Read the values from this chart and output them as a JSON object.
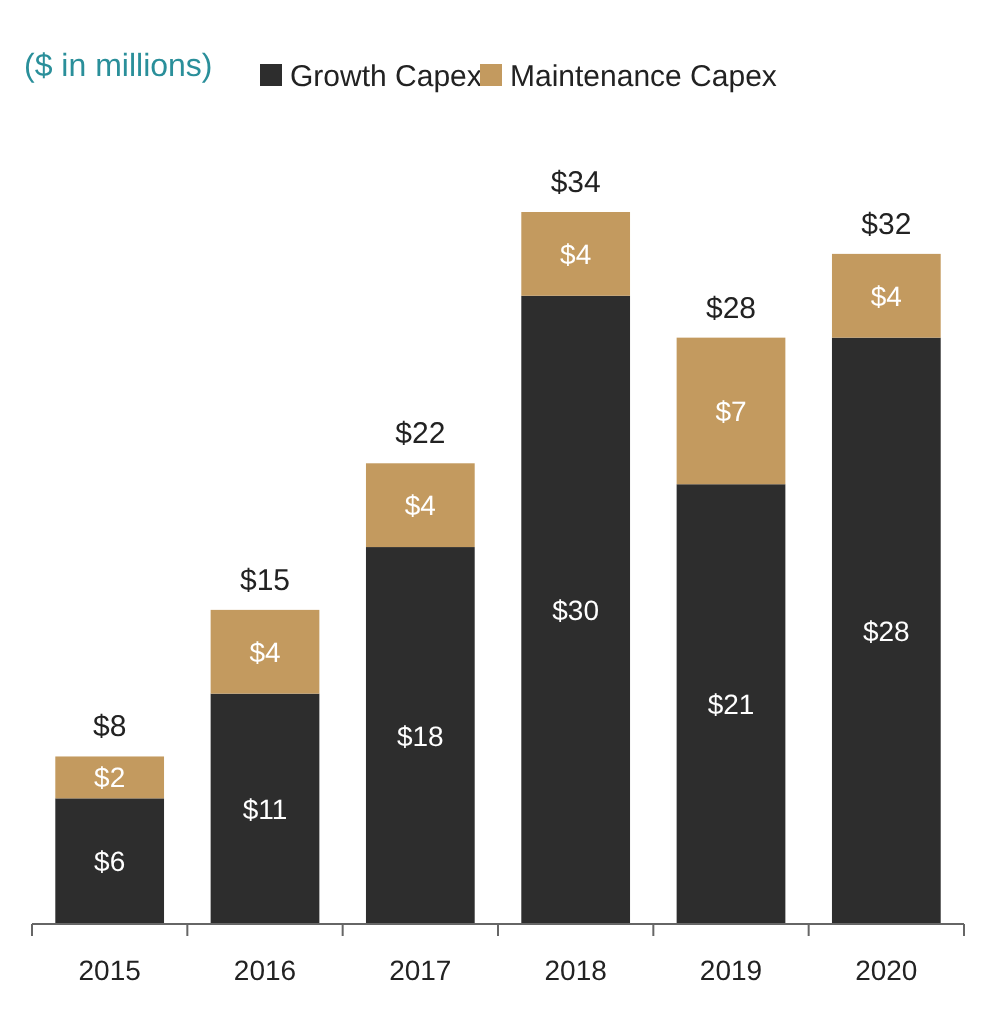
{
  "chart_data": {
    "type": "bar",
    "subtitle": "($ in millions)",
    "stacked": true,
    "legend": "top",
    "categories": [
      "2015",
      "2016",
      "2017",
      "2018",
      "2019",
      "2020"
    ],
    "series": [
      {
        "name": "Growth Capex",
        "color": "#2d2d2d",
        "values": [
          6,
          11,
          18,
          30,
          21,
          28
        ],
        "value_labels": [
          "$6",
          "$11",
          "$18",
          "$30",
          "$21",
          "$28"
        ]
      },
      {
        "name": "Maintenance Capex",
        "color": "#c39a5f",
        "values": [
          2,
          4,
          4,
          4,
          7,
          4
        ],
        "value_labels": [
          "$2",
          "$4",
          "$4",
          "$4",
          "$7",
          "$4"
        ]
      }
    ],
    "totals": [
      "$8",
      "$15",
      "$22",
      "$34",
      "$28",
      "$32"
    ]
  }
}
